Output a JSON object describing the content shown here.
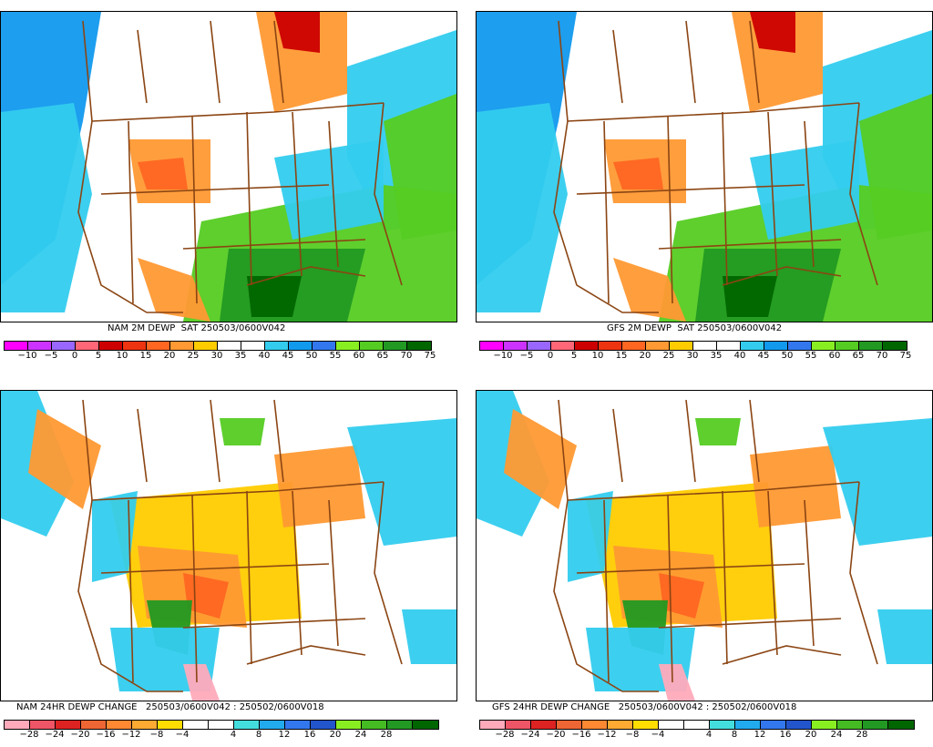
{
  "panels": [
    {
      "id": "nam-dewp",
      "caption": "NAM 2M DEWP  SAT 250503/0600V042",
      "colorbar": "dewp",
      "caption_left": 118
    },
    {
      "id": "gfs-dewp",
      "caption": "GFS 2M DEWP  SAT 250503/0600V042",
      "colorbar": "dewp",
      "caption_left": 144
    },
    {
      "id": "nam-change",
      "caption": "NAM 24HR DEWP CHANGE   250503/0600V042 : 250502/0600V018",
      "colorbar": "change",
      "caption_left": 18
    },
    {
      "id": "gfs-change",
      "caption": "GFS 24HR DEWP CHANGE   250503/0600V042 : 250502/0600V018",
      "colorbar": "change",
      "caption_left": 18
    }
  ],
  "colorbars": {
    "dewp": {
      "colors": [
        "#ff00ff",
        "#cc33ff",
        "#9966ff",
        "#ff6677",
        "#cc0000",
        "#ee3311",
        "#ff6622",
        "#ff9933",
        "#ffcc00",
        "#ffffff",
        "#ffffff",
        "#33ccee",
        "#1199ee",
        "#3377ee",
        "#88ee22",
        "#55cc22",
        "#229922",
        "#006600"
      ],
      "labels": [
        "−10",
        "−5",
        "0",
        "5",
        "10",
        "15",
        "20",
        "25",
        "30",
        "35",
        "40",
        "45",
        "50",
        "55",
        "60",
        "65",
        "70",
        "75"
      ]
    },
    "change": {
      "colors": [
        "#ffaabb",
        "#ee5566",
        "#dd2222",
        "#ee6633",
        "#ff8833",
        "#ffaa33",
        "#ffdd00",
        "#ffffff",
        "#ffffff",
        "#44dddd",
        "#22aaee",
        "#3377ee",
        "#2255cc",
        "#88ee22",
        "#44bb22",
        "#229922",
        "#006600"
      ],
      "labels": [
        "−28",
        "−24",
        "−20",
        "−16",
        "−12",
        "−8",
        "−4",
        "4",
        "8",
        "12",
        "16",
        "20",
        "24",
        "28"
      ]
    }
  },
  "map_colors": {
    "border": "#8b4513",
    "white": "#ffffff",
    "cyan": "#33ccee",
    "blue": "#1199ee",
    "green_light": "#88ee22",
    "green": "#55cc22",
    "green_dark": "#229922",
    "green_deep": "#006600",
    "yellow": "#ffcc00",
    "orange": "#ff9933",
    "orange_dark": "#ff6622",
    "red": "#cc0000",
    "pink": "#ffaabb",
    "magenta": "#cc66cc"
  }
}
